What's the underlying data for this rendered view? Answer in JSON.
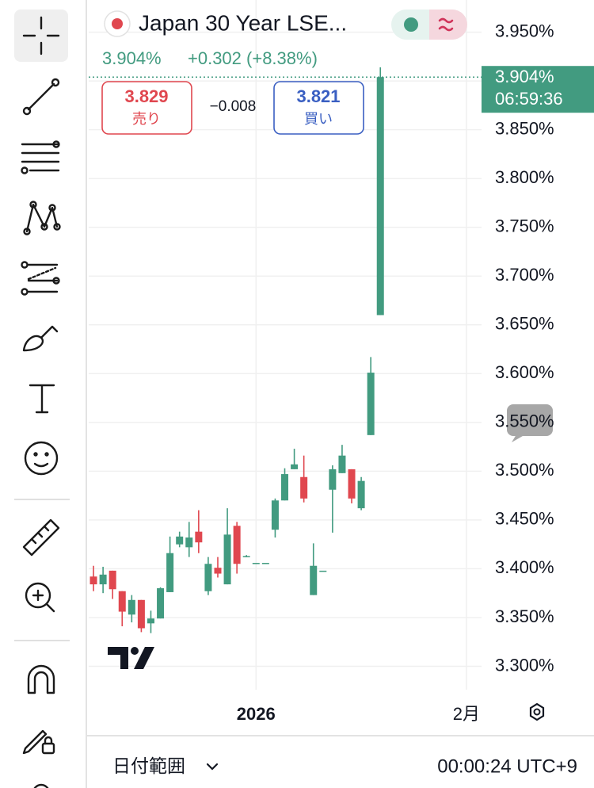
{
  "header": {
    "title": "Japan 30 Year LSE...",
    "last": "3.904%",
    "change": "+0.302 (+8.38%)",
    "sell_price": "3.829",
    "sell_label": "売り",
    "spread": "−0.008",
    "buy_price": "3.821",
    "buy_label": "買い"
  },
  "chart_data": {
    "type": "candlestick",
    "categories": [
      null,
      null,
      null,
      null,
      null,
      null,
      null,
      null,
      null,
      null,
      null,
      null,
      null,
      null,
      null,
      null,
      null,
      null,
      null,
      null,
      null,
      null,
      null,
      null,
      null,
      null,
      null,
      null,
      null,
      null,
      null
    ],
    "candles": {
      "open": [
        3.392,
        3.384,
        3.398,
        3.377,
        3.353,
        3.368,
        3.344,
        3.349,
        3.376,
        3.425,
        3.422,
        3.438,
        3.377,
        3.401,
        3.384,
        3.444,
        3.412,
        3.406,
        3.406,
        3.44,
        3.47,
        3.502,
        3.494,
        3.373,
        3.398,
        3.481,
        3.498,
        3.502,
        3.462,
        3.537,
        3.66
      ],
      "high": [
        3.403,
        3.402,
        3.398,
        3.377,
        3.373,
        3.368,
        3.357,
        3.381,
        3.433,
        3.438,
        3.448,
        3.46,
        3.412,
        3.412,
        3.462,
        3.448,
        3.414,
        3.406,
        3.406,
        3.472,
        3.503,
        3.523,
        3.516,
        3.426,
        3.398,
        3.506,
        3.527,
        3.502,
        3.494,
        3.617,
        3.914
      ],
      "low": [
        3.377,
        3.375,
        3.369,
        3.341,
        3.345,
        3.335,
        3.334,
        3.349,
        3.376,
        3.422,
        3.412,
        3.416,
        3.373,
        3.391,
        3.384,
        3.395,
        3.412,
        3.406,
        3.406,
        3.432,
        3.47,
        3.502,
        3.468,
        3.373,
        3.398,
        3.437,
        3.498,
        3.467,
        3.46,
        3.537,
        3.66
      ],
      "close": [
        3.384,
        3.394,
        3.379,
        3.356,
        3.368,
        3.339,
        3.349,
        3.38,
        3.416,
        3.433,
        3.432,
        3.427,
        3.405,
        3.395,
        3.435,
        3.405,
        3.413,
        3.406,
        3.406,
        3.47,
        3.497,
        3.507,
        3.472,
        3.403,
        3.398,
        3.502,
        3.516,
        3.472,
        3.49,
        3.601,
        3.904
      ]
    },
    "up_color": "#429b80",
    "down_color": "#e0474f",
    "xlim": [
      -0.5,
      40.25
    ],
    "xticks": [
      {
        "value": 17,
        "label": "2026"
      },
      {
        "value": 39,
        "label": "2月"
      }
    ],
    "ylim": [
      3.276,
      3.983
    ],
    "yticks": [
      {
        "value": 3.3,
        "label": "3.300%"
      },
      {
        "value": 3.35,
        "label": "3.350%"
      },
      {
        "value": 3.4,
        "label": "3.400%"
      },
      {
        "value": 3.45,
        "label": "3.450%"
      },
      {
        "value": 3.5,
        "label": "3.500%"
      },
      {
        "value": 3.55,
        "label": "3.550%"
      },
      {
        "value": 3.6,
        "label": "3.600%"
      },
      {
        "value": 3.65,
        "label": "3.650%"
      },
      {
        "value": 3.7,
        "label": "3.700%"
      },
      {
        "value": 3.75,
        "label": "3.750%"
      },
      {
        "value": 3.8,
        "label": "3.800%"
      },
      {
        "value": 3.85,
        "label": "3.850%"
      },
      {
        "value": 3.9,
        "label": "3.900%"
      },
      {
        "value": 3.95,
        "label": "3.950%"
      }
    ],
    "grid": true,
    "price_line": {
      "value": 3.904,
      "label": "3.904%",
      "countdown": "06:59:36"
    }
  },
  "footer": {
    "range_label": "日付範囲",
    "time": "00:00:24 UTC+9"
  }
}
